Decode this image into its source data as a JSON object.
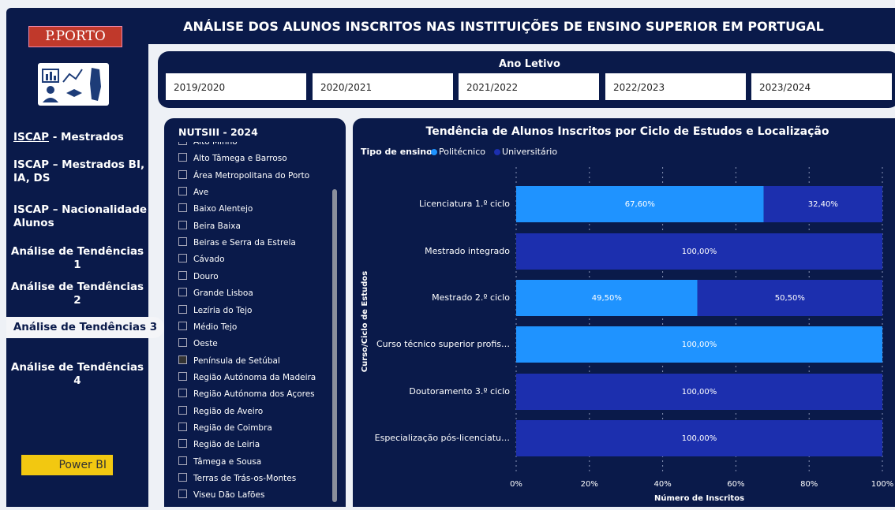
{
  "header": {
    "title": "ANÁLISE DOS ALUNOS INSCRITOS NAS INSTITUIÇÕES DE ENSINO SUPERIOR EM PORTUGAL"
  },
  "sidebar": {
    "logo": "P.PORTO",
    "menu": [
      {
        "link": "ISCAP",
        "label": "- Mestrados"
      },
      {
        "label": "ISCAP – Mestrados BI, IA, DS"
      },
      {
        "label": "ISCAP – Nacionalidade Alunos"
      },
      {
        "label": "Análise de Tendências 1"
      },
      {
        "label": "Análise de Tendências 2"
      },
      {
        "label": "Análise de Tendências 3"
      },
      {
        "label": "Análise de Tendências 4"
      }
    ],
    "button": "Power BI"
  },
  "year_slicer": {
    "title": "Ano Letivo",
    "options": [
      "2019/2020",
      "2020/2021",
      "2021/2022",
      "2022/2023",
      "2023/2024"
    ]
  },
  "nuts_slicer": {
    "title": "NUTSIII - 2024",
    "options": [
      "Alto Minho",
      "Alto Tâmega e Barroso",
      "Área Metropolitana do Porto",
      "Ave",
      "Baixo Alentejo",
      "Beira Baixa",
      "Beiras e Serra da Estrela",
      "Cávado",
      "Douro",
      "Grande Lisboa",
      "Lezíria do Tejo",
      "Médio Tejo",
      "Oeste",
      "Península de Setúbal",
      "Região Autónoma da Madeira",
      "Região Autónoma dos Açores",
      "Região de Aveiro",
      "Região de Coimbra",
      "Região de Leiria",
      "Tâmega e Sousa",
      "Terras de Trás-os-Montes",
      "Viseu Dão Lafões"
    ],
    "selected": "Península de Setúbal"
  },
  "chart_data": {
    "type": "stacked_bar_horizontal",
    "title": "Tendência de Alunos Inscritos por Ciclo de Estudos e Localização",
    "legend_title": "Tipo de ensino",
    "x_label": "Número de Inscritos",
    "y_label": "Curso/Ciclo de Estudos",
    "categories": [
      "Licenciatura 1.º ciclo",
      "Mestrado integrado",
      "Mestrado 2.º ciclo",
      "Curso técnico superior profis…",
      "Doutoramento 3.º ciclo",
      "Especialização pós-licenciatu…"
    ],
    "series": [
      {
        "name": "Politécnico",
        "color": "#1f93ff",
        "values": [
          67.6,
          0,
          49.5,
          100,
          0,
          0
        ],
        "value_labels": [
          "67,60%",
          null,
          "49,50%",
          "100,00%",
          null,
          null
        ]
      },
      {
        "name": "Universitário",
        "color": "#1c2fae",
        "values": [
          32.4,
          100,
          50.5,
          0,
          100,
          100
        ],
        "value_labels": [
          "32,40%",
          "100,00%",
          "50,50%",
          null,
          "100,00%",
          "100,00%"
        ]
      }
    ],
    "xlim": [
      0,
      100
    ],
    "xticks": [
      {
        "value": 0,
        "label": "0%"
      },
      {
        "value": 20,
        "label": "20%"
      },
      {
        "value": 40,
        "label": "40%"
      },
      {
        "value": 60,
        "label": "60%"
      },
      {
        "value": 80,
        "label": "80%"
      },
      {
        "value": 100,
        "label": "100%"
      }
    ],
    "grid": true
  }
}
